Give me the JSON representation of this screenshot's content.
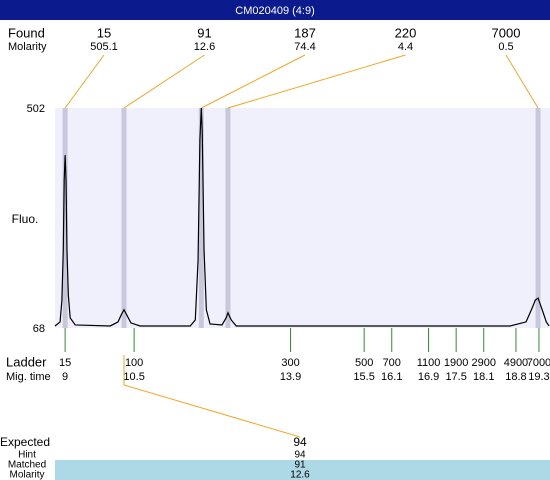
{
  "title": "CM020409 (4:9)",
  "chart_data": {
    "type": "line",
    "ylabel": "Fluo.",
    "ylim": [
      68,
      502
    ],
    "yticks": [
      68,
      502
    ],
    "xlim": [
      8.78,
      19.54
    ],
    "x": [
      8.78,
      8.89,
      8.93,
      8.96,
      8.98,
      9.0,
      9.02,
      9.04,
      9.07,
      9.11,
      9.22,
      9.98,
      10.15,
      10.22,
      10.28,
      10.35,
      10.43,
      10.63,
      11.72,
      11.83,
      11.89,
      11.93,
      11.96,
      11.98,
      12.02,
      12.07,
      12.15,
      12.41,
      12.5,
      12.54,
      12.61,
      12.72,
      18.67,
      19.02,
      19.15,
      19.22,
      19.28,
      19.37,
      19.46,
      19.52
    ],
    "values": [
      72,
      80,
      123,
      222,
      360,
      409,
      360,
      222,
      133,
      88,
      74,
      72,
      80,
      94,
      104,
      92,
      78,
      72,
      72,
      84,
      202,
      439,
      502,
      458,
      222,
      104,
      76,
      74,
      88,
      98,
      84,
      72,
      72,
      80,
      107,
      123,
      127,
      104,
      80,
      72
    ],
    "color": "#000000",
    "peaks": {
      "found_label": "Found",
      "molarity_label": "Molarity",
      "sizes": [
        15,
        91,
        187,
        220,
        7000
      ],
      "molarity": [
        505.1,
        12.6,
        74.4,
        4.4,
        0.5
      ],
      "times": [
        9.0,
        10.28,
        11.96,
        12.54,
        19.28
      ]
    },
    "ladder": {
      "label": "Ladder",
      "time_label": "Mig. time",
      "sizes": [
        15,
        100,
        300,
        500,
        700,
        1100,
        1900,
        2900,
        4900,
        7000
      ],
      "times": [
        9,
        10.5,
        13.9,
        15.5,
        16.1,
        16.9,
        17.5,
        18.1,
        18.8,
        19.3
      ]
    }
  },
  "expected": {
    "label": "Expected",
    "value": 94,
    "hint_label": "Hint",
    "hint": 94,
    "matched_label": "Matched",
    "matched": 91,
    "molarity_label": "Molarity",
    "molarity": 12.6
  }
}
